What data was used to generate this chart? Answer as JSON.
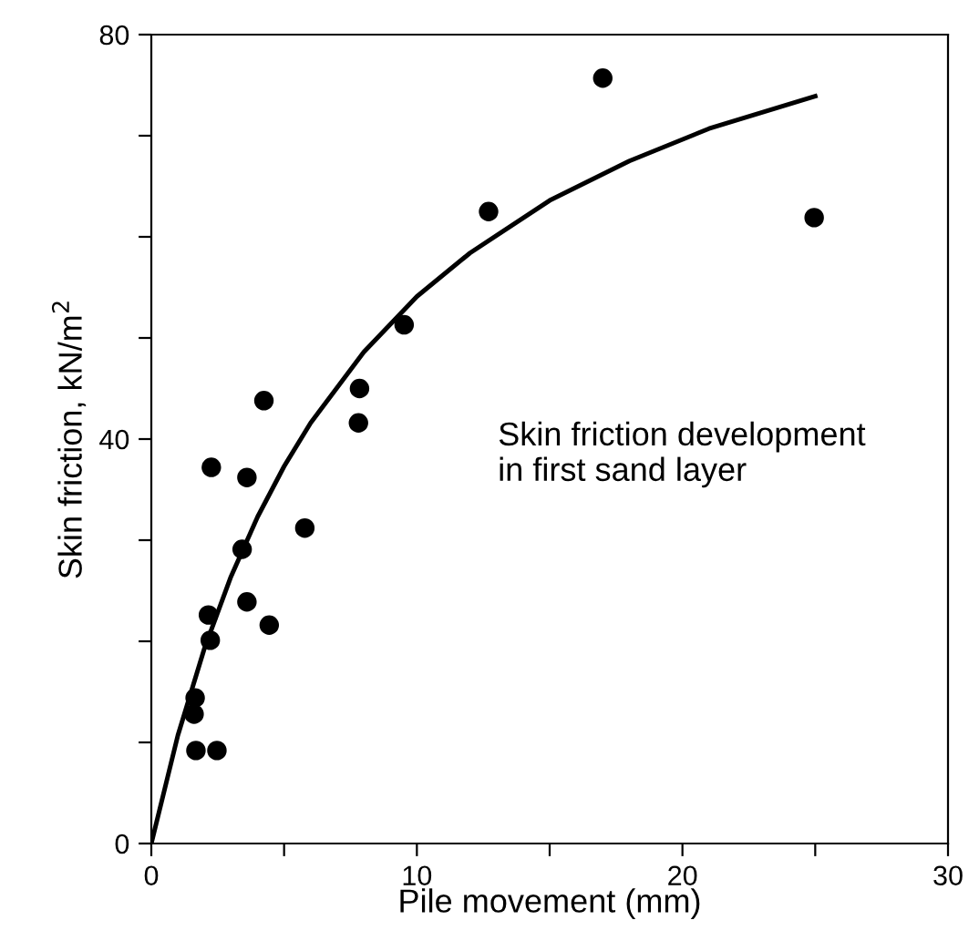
{
  "chart_data": {
    "type": "scatter",
    "xlabel": "Pile movement (mm)",
    "ylabel": "Skin friction, kN/m$^{2}$",
    "xlim": [
      0,
      30
    ],
    "ylim": [
      0,
      80
    ],
    "xticks": [
      0,
      {
        "value": 5,
        "label": null
      },
      10,
      {
        "value": 15,
        "label": null
      },
      20,
      {
        "value": 25,
        "label": null
      },
      30
    ],
    "yticks": [
      0,
      {
        "value": 10,
        "label": null
      },
      {
        "value": 20,
        "label": null
      },
      {
        "value": 30,
        "label": null
      },
      40,
      {
        "value": 50,
        "label": null
      },
      {
        "value": 60,
        "label": null
      },
      {
        "value": 70,
        "label": null
      },
      80
    ],
    "grid": false,
    "legend": false,
    "annotations": [
      "Skin friction development\nin first sand layer"
    ],
    "series": [
      {
        "color": "#000000",
        "marker": "circle",
        "x": [
          1.68,
          2.47,
          1.61,
          1.65,
          2.22,
          2.15,
          3.6,
          4.44,
          3.42,
          5.78,
          2.26,
          3.6,
          4.24,
          7.8,
          7.84,
          9.52,
          17.0,
          24.96,
          12.7
        ],
        "values": [
          9.2,
          9.2,
          12.8,
          14.4,
          20.1,
          22.6,
          23.9,
          21.6,
          29.1,
          31.2,
          37.2,
          36.2,
          43.8,
          41.6,
          45.0,
          51.3,
          75.7,
          61.9,
          62.5
        ]
      },
      {
        "type": "line",
        "color": "#000000",
        "marker": "none",
        "line_style": "solid",
        "x": [
          0,
          1,
          2,
          3,
          4,
          5,
          6,
          8,
          10,
          12,
          15,
          18,
          21,
          25
        ],
        "values": [
          0,
          10.7,
          19.3,
          26.4,
          32.3,
          37.3,
          41.6,
          48.6,
          54.1,
          58.4,
          63.6,
          67.5,
          70.7,
          73.9
        ]
      }
    ]
  }
}
